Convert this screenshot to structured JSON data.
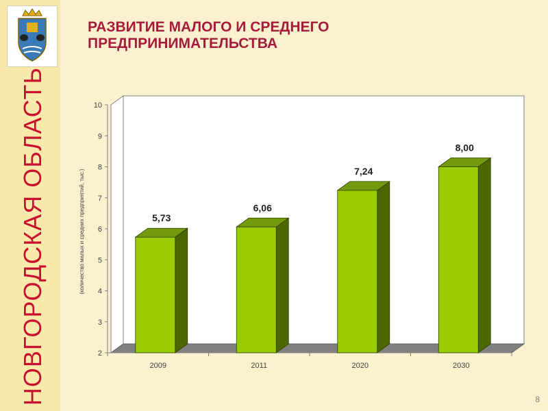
{
  "slide": {
    "title_line1": "РАЗВИТИЕ МАЛОГО И СРЕДНЕГО",
    "title_line2": "ПРЕДПРИНИМАТЕЛЬСТВА",
    "sidebar_title": "НОВГОРОДСКАЯ ОБЛАСТЬ",
    "page_number": "8"
  },
  "colors": {
    "title": "#A61B3C",
    "sidebar_text": "#C8102E",
    "sidebar_bg": "#F9E9AA",
    "bar_front": "#99CC00",
    "bar_side": "#4D6600",
    "bar_top": "#73990D"
  },
  "chart_data": {
    "type": "bar",
    "title": "",
    "xlabel": "",
    "ylabel": "(количество малых и средних предприятий, тыс.)",
    "categories": [
      "2009",
      "2011",
      "2020",
      "2030"
    ],
    "values": [
      5.73,
      6.06,
      7.24,
      8.0
    ],
    "value_labels": [
      "5,73",
      "6,06",
      "7,24",
      "8,00"
    ],
    "ylim": [
      2,
      10
    ],
    "yticks": [
      "2",
      "3",
      "4",
      "5",
      "6",
      "7",
      "8",
      "9",
      "10"
    ],
    "grid": false,
    "legend": "none",
    "style": "3d-column"
  }
}
